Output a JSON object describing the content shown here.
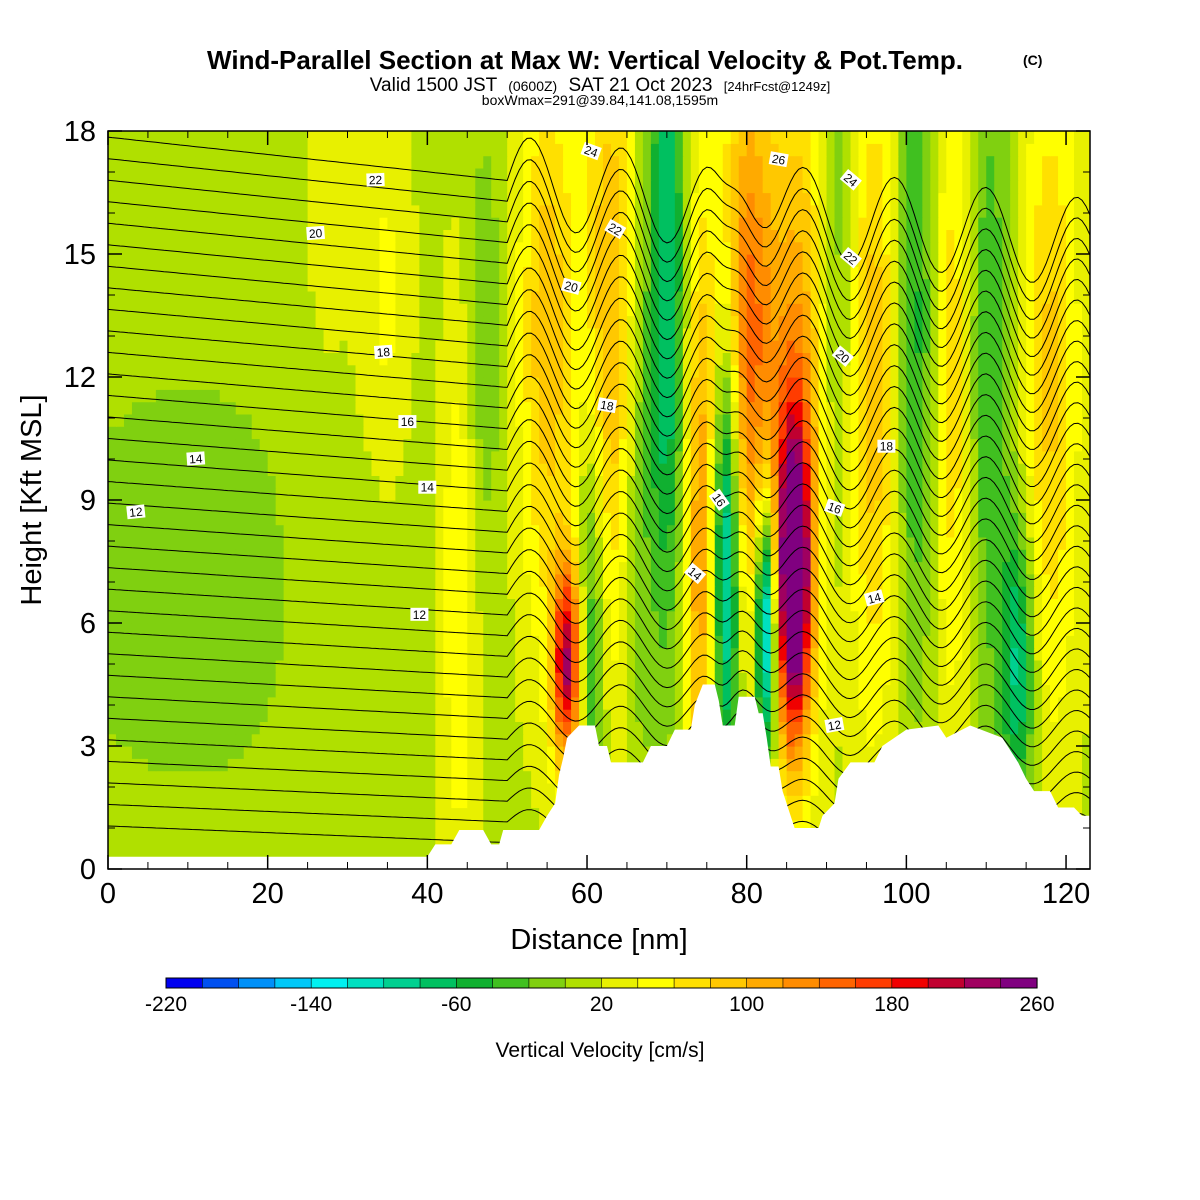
{
  "header": {
    "title": "Wind-Parallel Section at Max W: Vertical Velocity & Pot.Temp.",
    "title_mark": "(C)",
    "valid_prefix": "Valid 1500 JST",
    "valid_zulu": "(0600Z)",
    "valid_date": "SAT 21 Oct 2023",
    "forecast": "[24hrFcst@1249z]",
    "box_info": "boxWmax=291@39.84,141.08,1595m"
  },
  "chart_data": {
    "type": "heatmap",
    "xlabel": "Distance [nm]",
    "ylabel": "Height [Kft MSL]",
    "xlim": [
      0,
      123
    ],
    "ylim": [
      0,
      18
    ],
    "x_ticks": [
      "0",
      "20",
      "40",
      "60",
      "80",
      "100",
      "120"
    ],
    "x_tick_values": [
      0,
      20,
      40,
      60,
      80,
      100,
      120
    ],
    "y_ticks": [
      "0",
      "3",
      "6",
      "9",
      "12",
      "15",
      "18"
    ],
    "y_tick_values": [
      0,
      3,
      6,
      9,
      12,
      15,
      18
    ],
    "colorbar": {
      "label": "Vertical Velocity [cm/s]",
      "min": -220,
      "max": 260,
      "step": 20,
      "tick_labels": [
        "-220",
        "-140",
        "-60",
        "20",
        "100",
        "180",
        "260"
      ],
      "tick_values": [
        -220,
        -140,
        -60,
        20,
        100,
        180,
        260
      ],
      "colors": [
        "#0000f0",
        "#0050f0",
        "#0090f8",
        "#00c8f8",
        "#00f0f0",
        "#00e0c0",
        "#00d090",
        "#00c060",
        "#10b030",
        "#40c020",
        "#80d010",
        "#b0e000",
        "#e8f000",
        "#ffff00",
        "#ffe000",
        "#ffc800",
        "#ffaa00",
        "#ff8c00",
        "#ff6400",
        "#ff3c00",
        "#f00000",
        "#c00030",
        "#a00060",
        "#800080"
      ]
    },
    "terrain": [
      [
        0,
        0.3
      ],
      [
        40,
        0.3
      ],
      [
        41,
        0.6
      ],
      [
        43,
        0.6
      ],
      [
        44,
        0.95
      ],
      [
        47,
        0.95
      ],
      [
        48,
        0.6
      ],
      [
        49,
        0.6
      ],
      [
        49.5,
        0.95
      ],
      [
        54,
        0.95
      ],
      [
        55,
        1.3
      ],
      [
        56,
        1.6
      ],
      [
        56.5,
        2.3
      ],
      [
        57,
        2.7
      ],
      [
        57.5,
        3.2
      ],
      [
        59,
        3.5
      ],
      [
        61,
        3.5
      ],
      [
        61.5,
        3.0
      ],
      [
        62.5,
        3.0
      ],
      [
        63,
        2.6
      ],
      [
        64,
        2.6
      ],
      [
        65,
        2.6
      ],
      [
        66,
        2.6
      ],
      [
        67,
        2.6
      ],
      [
        68,
        3.0
      ],
      [
        70,
        3.0
      ],
      [
        71,
        3.4
      ],
      [
        73,
        3.4
      ],
      [
        73.5,
        4.0
      ],
      [
        74.5,
        4.5
      ],
      [
        76,
        4.5
      ],
      [
        76.5,
        4.1
      ],
      [
        77,
        3.5
      ],
      [
        78.5,
        3.5
      ],
      [
        79,
        4.2
      ],
      [
        81,
        4.2
      ],
      [
        81.5,
        3.8
      ],
      [
        82,
        3.8
      ],
      [
        82.5,
        3.2
      ],
      [
        83,
        2.5
      ],
      [
        84,
        2.5
      ],
      [
        84.5,
        1.9
      ],
      [
        85.5,
        1.3
      ],
      [
        86,
        1.0
      ],
      [
        89,
        1.0
      ],
      [
        89.5,
        1.3
      ],
      [
        91,
        1.6
      ],
      [
        91.5,
        2.2
      ],
      [
        93,
        2.6
      ],
      [
        96,
        2.6
      ],
      [
        97,
        3.0
      ],
      [
        100,
        3.4
      ],
      [
        104,
        3.5
      ],
      [
        105,
        3.2
      ],
      [
        108,
        3.5
      ],
      [
        112,
        3.2
      ],
      [
        113,
        2.9
      ],
      [
        114,
        2.6
      ],
      [
        115,
        2.2
      ],
      [
        116,
        1.9
      ],
      [
        118,
        1.9
      ],
      [
        119,
        1.5
      ],
      [
        121,
        1.5
      ],
      [
        122,
        1.3
      ],
      [
        123,
        1.3
      ]
    ],
    "updraft_bands": [
      {
        "x": 10,
        "z": 7,
        "w": -30,
        "sx": 13,
        "sz": 4
      },
      {
        "x": 27,
        "z": 10,
        "w": 10,
        "sx": 4,
        "sz": 8
      },
      {
        "x": 35,
        "z": 14,
        "w": 30,
        "sx": 2,
        "sz": 3
      },
      {
        "x": 44,
        "z": 7,
        "w": 50,
        "sx": 1.5,
        "sz": 5
      },
      {
        "x": 47,
        "z": 13,
        "w": -30,
        "sx": 2,
        "sz": 4
      },
      {
        "x": 57.5,
        "z": 5,
        "w": 200,
        "sx": 1.3,
        "sz": 1.8
      },
      {
        "x": 55,
        "z": 13,
        "w": 80,
        "sx": 2.5,
        "sz": 5
      },
      {
        "x": 60.5,
        "z": 6,
        "w": -80,
        "sx": 1.3,
        "sz": 4
      },
      {
        "x": 63,
        "z": 13,
        "w": 90,
        "sx": 2.5,
        "sz": 6
      },
      {
        "x": 66,
        "z": 9,
        "w": -40,
        "sx": 1.5,
        "sz": 5
      },
      {
        "x": 70,
        "z": 14,
        "w": -100,
        "sx": 1.8,
        "sz": 6
      },
      {
        "x": 74,
        "z": 8,
        "w": 100,
        "sx": 1.5,
        "sz": 6
      },
      {
        "x": 77.5,
        "z": 8,
        "w": -160,
        "sx": 1.2,
        "sz": 4
      },
      {
        "x": 80,
        "z": 13,
        "w": 130,
        "sx": 2.5,
        "sz": 5
      },
      {
        "x": 82.5,
        "z": 6,
        "w": -200,
        "sx": 1.0,
        "sz": 2.2
      },
      {
        "x": 85.8,
        "z": 7,
        "w": 270,
        "sx": 1.5,
        "sz": 2.7
      },
      {
        "x": 87,
        "z": 12,
        "w": 100,
        "sx": 3,
        "sz": 6
      },
      {
        "x": 91,
        "z": 14,
        "w": -60,
        "sx": 2,
        "sz": 6
      },
      {
        "x": 96,
        "z": 12,
        "w": 80,
        "sx": 2.5,
        "sz": 6
      },
      {
        "x": 101,
        "z": 13,
        "w": -70,
        "sx": 2,
        "sz": 6
      },
      {
        "x": 106,
        "z": 12,
        "w": 70,
        "sx": 2,
        "sz": 6
      },
      {
        "x": 110,
        "z": 12,
        "w": -60,
        "sx": 2.2,
        "sz": 6
      },
      {
        "x": 114,
        "z": 5,
        "w": -100,
        "sx": 1.5,
        "sz": 2.5
      },
      {
        "x": 118,
        "z": 12,
        "w": 70,
        "sx": 2.5,
        "sz": 6
      }
    ],
    "theta_contours": {
      "levels": [
        12,
        14,
        16,
        18,
        20,
        22,
        24,
        26
      ],
      "labeled": [
        {
          "text": "22",
          "x": 33.5,
          "z": 16.8,
          "angle": -2
        },
        {
          "text": "20",
          "x": 26,
          "z": 15.5,
          "angle": -4
        },
        {
          "text": "18",
          "x": 34.5,
          "z": 12.6,
          "angle": -4
        },
        {
          "text": "16",
          "x": 37.5,
          "z": 10.9,
          "angle": 0
        },
        {
          "text": "14",
          "x": 11,
          "z": 10.0,
          "angle": -4
        },
        {
          "text": "14",
          "x": 40,
          "z": 9.3,
          "angle": 0
        },
        {
          "text": "12",
          "x": 3.5,
          "z": 8.7,
          "angle": -6
        },
        {
          "text": "12",
          "x": 39,
          "z": 6.2,
          "angle": 0
        },
        {
          "text": "24",
          "x": 60.5,
          "z": 17.5,
          "angle": 20
        },
        {
          "text": "22",
          "x": 63.5,
          "z": 15.6,
          "angle": 30
        },
        {
          "text": "20",
          "x": 58,
          "z": 14.2,
          "angle": 15
        },
        {
          "text": "18",
          "x": 62.5,
          "z": 11.3,
          "angle": 10
        },
        {
          "text": "16",
          "x": 76.5,
          "z": 9.0,
          "angle": 55
        },
        {
          "text": "14",
          "x": 73.5,
          "z": 7.2,
          "angle": 40
        },
        {
          "text": "26",
          "x": 84,
          "z": 17.3,
          "angle": 10
        },
        {
          "text": "24",
          "x": 93,
          "z": 16.8,
          "angle": 40
        },
        {
          "text": "22",
          "x": 93,
          "z": 14.9,
          "angle": 40
        },
        {
          "text": "20",
          "x": 92,
          "z": 12.5,
          "angle": 40
        },
        {
          "text": "18",
          "x": 97.5,
          "z": 10.3,
          "angle": 0
        },
        {
          "text": "16",
          "x": 91,
          "z": 8.8,
          "angle": 20
        },
        {
          "text": "14",
          "x": 96,
          "z": 6.6,
          "angle": -15
        },
        {
          "text": "12",
          "x": 91,
          "z": 3.5,
          "angle": -10
        }
      ]
    }
  }
}
